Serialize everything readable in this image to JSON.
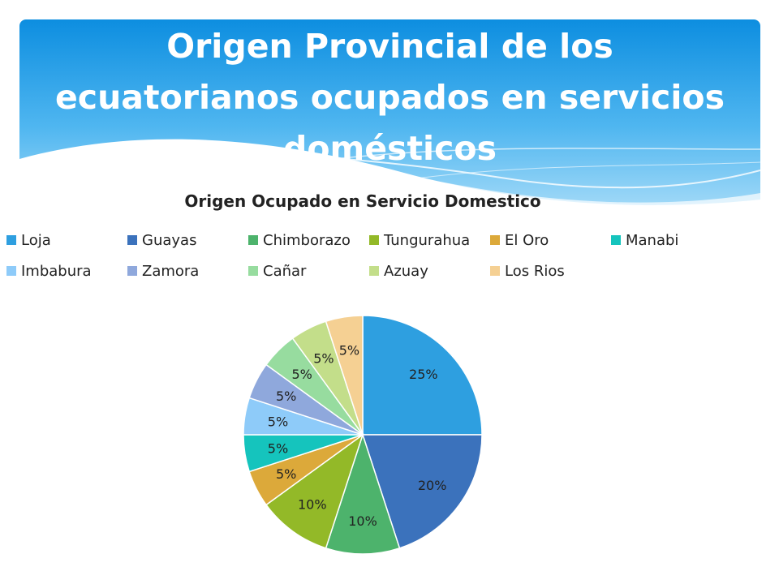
{
  "slide": {
    "title_lines": [
      "Origen Provincial de los",
      "ecuatorianos ocupados en servicios",
      "domésticos"
    ]
  },
  "chart_data": {
    "type": "pie",
    "title": "Origen Ocupado en Servicio Domestico",
    "legend_position": "top",
    "slices": [
      {
        "name": "Loja",
        "value": 25,
        "label": "25%",
        "color": "#2e9fe0"
      },
      {
        "name": "Guayas",
        "value": 20,
        "label": "20%",
        "color": "#3b72bc"
      },
      {
        "name": "Chimborazo",
        "value": 10,
        "label": "10%",
        "color": "#4db36c"
      },
      {
        "name": "Tungurahua",
        "value": 10,
        "label": "10%",
        "color": "#93b928"
      },
      {
        "name": "El Oro",
        "value": 5,
        "label": "5%",
        "color": "#dca93a"
      },
      {
        "name": "Manabi",
        "value": 5,
        "label": "5%",
        "color": "#15c4bd"
      },
      {
        "name": "Imbabura",
        "value": 5,
        "label": "5%",
        "color": "#8ecbf9"
      },
      {
        "name": "Zamora",
        "value": 5,
        "label": "5%",
        "color": "#8fa8dc"
      },
      {
        "name": "Cañar",
        "value": 5,
        "label": "5%",
        "color": "#97dc9f"
      },
      {
        "name": "Azuay",
        "value": 5,
        "label": "5%",
        "color": "#c3de8a"
      },
      {
        "name": "Los Rios",
        "value": 5,
        "label": "5%",
        "color": "#f5d093"
      }
    ]
  }
}
